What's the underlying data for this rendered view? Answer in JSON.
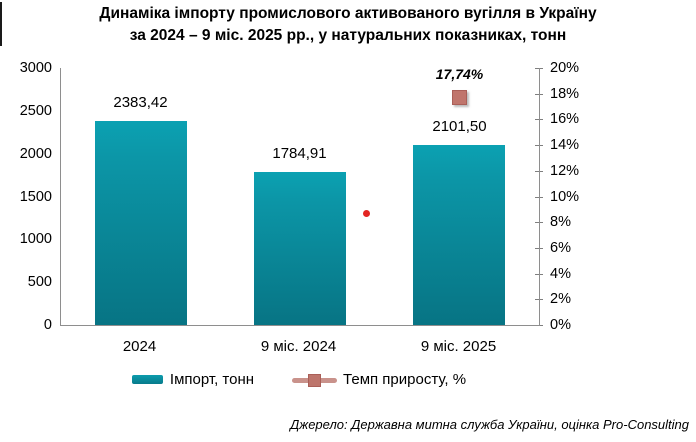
{
  "title_lines": [
    "Динаміка імпорту промислового активованого вугілля в Україну",
    "за 2024 – 9 міс. 2025 рр., у натуральних показниках, тонн"
  ],
  "source": "Джерело: Державна митна служба України, оцінка Pro-Consulting",
  "colors": {
    "bar_teal_top": "#0ba1b2",
    "bar_teal_bottom": "#077484",
    "marker_salmon": "#c0756c",
    "marker_border": "#aa5f58",
    "legend_line_salmon": "#c9928b",
    "stray_dot_red": "#e32522",
    "axis_gray": "#8e8e8e",
    "text": "#000000"
  },
  "chart_data": {
    "type": "bar",
    "title": "Динаміка імпорту промислового активованого вугілля в Україну за 2024 – 9 міс. 2025 рр., у натуральних показниках, тонн",
    "categories": [
      "2024",
      "9 міс. 2024",
      "9 міс. 2025"
    ],
    "series": [
      {
        "name": "Імпорт, тонн",
        "type": "bar",
        "axis": "left",
        "values": [
          2383.42,
          1784.91,
          2101.5
        ],
        "labels": [
          "2383,42",
          "1784,91",
          "2101,50"
        ],
        "color": "#0d96a6"
      },
      {
        "name": "Темп приросту, %",
        "type": "point",
        "axis": "right",
        "values": [
          null,
          null,
          17.74
        ],
        "labels": [
          null,
          null,
          "17,74%"
        ],
        "color": "#c0756c"
      }
    ],
    "left_axis": {
      "min": 0,
      "max": 3000,
      "step": 500,
      "ticks": [
        "0",
        "500",
        "1000",
        "1500",
        "2000",
        "2500",
        "3000"
      ]
    },
    "right_axis": {
      "min": 0,
      "max": 20,
      "step": 2,
      "ticks": [
        "0%",
        "2%",
        "4%",
        "6%",
        "8%",
        "10%",
        "12%",
        "14%",
        "16%",
        "18%",
        "20%"
      ]
    },
    "grid": false,
    "legend_position": "bottom",
    "unlabeled_red_dot": {
      "approx_value_pct": 8.7,
      "x_fraction_of_plot": 0.64,
      "color": "#e32522"
    }
  }
}
